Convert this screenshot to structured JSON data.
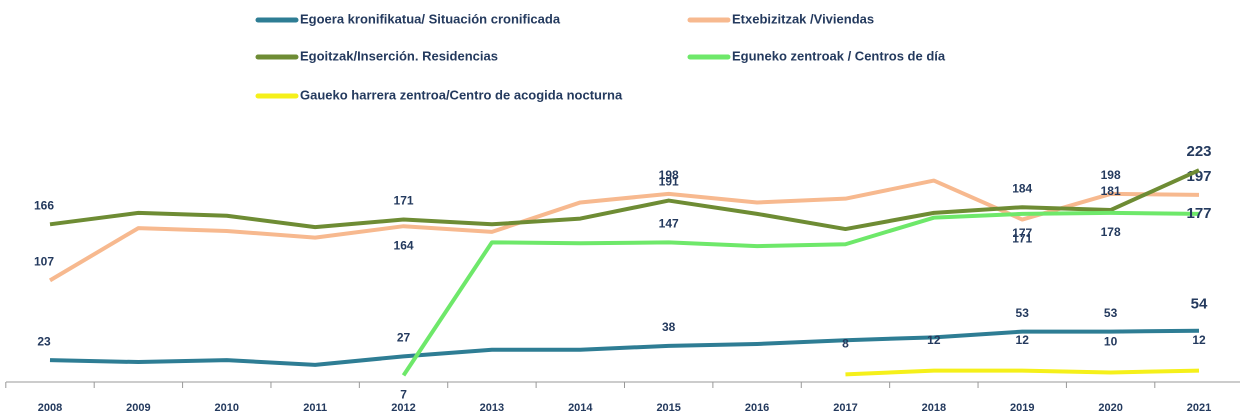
{
  "chart_data": {
    "type": "line",
    "categories": [
      "2008",
      "2009",
      "2010",
      "2011",
      "2012",
      "2013",
      "2014",
      "2015",
      "2016",
      "2017",
      "2018",
      "2019",
      "2020",
      "2021"
    ],
    "series": [
      {
        "name": "Egoera kronifikatua/ Situación cronificada",
        "color": "#2e7d94",
        "values": [
          23,
          21,
          23,
          18,
          27,
          34,
          34,
          38,
          40,
          44,
          47,
          53,
          53,
          54
        ],
        "value_labels": [
          "23",
          null,
          null,
          null,
          "27",
          null,
          null,
          "38",
          null,
          null,
          null,
          "53",
          "53",
          "54"
        ]
      },
      {
        "name": "Etxebizitzak /Viviendas",
        "color": "#f7b98f",
        "values": [
          107,
          162,
          159,
          152,
          164,
          158,
          189,
          198,
          189,
          193,
          212,
          171,
          198,
          197
        ],
        "value_labels": [
          "107",
          null,
          null,
          null,
          "164",
          null,
          null,
          "198",
          null,
          null,
          null,
          "171",
          "198",
          "197"
        ]
      },
      {
        "name": "Egoitzak/Inserción. Residencias",
        "color": "#6e8c34",
        "values": [
          166,
          178,
          175,
          163,
          171,
          166,
          172,
          191,
          177,
          161,
          178,
          184,
          181,
          223
        ],
        "value_labels": [
          "166",
          null,
          null,
          null,
          "171",
          null,
          null,
          "191",
          null,
          null,
          null,
          "184",
          "181",
          "223"
        ]
      },
      {
        "name": "Eguneko zentroak / Centros de día",
        "color": "#6ee86a",
        "values": [
          null,
          null,
          null,
          null,
          7,
          147,
          146,
          147,
          143,
          145,
          173,
          177,
          178,
          177
        ],
        "value_labels": [
          null,
          null,
          null,
          null,
          "7",
          null,
          null,
          "147",
          null,
          null,
          null,
          "177",
          "178",
          "177"
        ]
      },
      {
        "name": "Gaueko harrera zentroa/Centro de acogida nocturna",
        "color": "#f5f01a",
        "values": [
          null,
          null,
          null,
          null,
          null,
          null,
          null,
          null,
          null,
          8,
          12,
          12,
          10,
          12
        ],
        "value_labels": [
          null,
          null,
          null,
          null,
          null,
          null,
          null,
          null,
          null,
          "8",
          "12",
          "12",
          "10",
          "12"
        ]
      }
    ]
  }
}
